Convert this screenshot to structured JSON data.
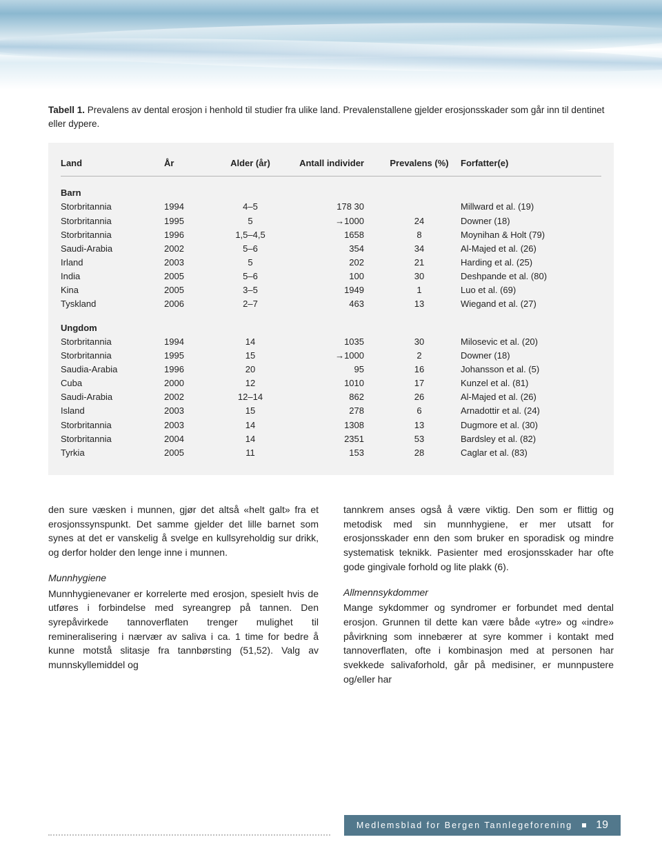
{
  "caption": {
    "label": "Tabell 1.",
    "text": "Prevalens av dental erosjon i henhold til studier fra ulike land. Prevalenstallene gjelder erosjonsskader som går inn til dentinet eller dypere."
  },
  "table": {
    "headers": {
      "land": "Land",
      "year": "År",
      "age": "Alder (år)",
      "n": "Antall individer",
      "prev": "Prevalens (%)",
      "auth": "Forfatter(e)"
    },
    "section1": "Barn",
    "barn": [
      {
        "land": "Storbritannia",
        "year": "1994",
        "age": "4–5",
        "n": "178 30",
        "prev": "",
        "auth": "Millward et al. (19)"
      },
      {
        "land": "Storbritannia",
        "year": "1995",
        "age": "5",
        "n": "→1000",
        "prev": "24",
        "auth": "Downer (18)"
      },
      {
        "land": "Storbritannia",
        "year": "1996",
        "age": "1,5–4,5",
        "n": "1658",
        "prev": "8",
        "auth": "Moynihan & Holt (79)"
      },
      {
        "land": "Saudi-Arabia",
        "year": "2002",
        "age": "5–6",
        "n": "354",
        "prev": "34",
        "auth": "Al-Majed et al. (26)"
      },
      {
        "land": "Irland",
        "year": "2003",
        "age": "5",
        "n": "202",
        "prev": "21",
        "auth": "Harding et al. (25)"
      },
      {
        "land": "India",
        "year": "2005",
        "age": "5–6",
        "n": "100",
        "prev": "30",
        "auth": "Deshpande et al. (80)"
      },
      {
        "land": "Kina",
        "year": "2005",
        "age": "3–5",
        "n": "1949",
        "prev": "1",
        "auth": "Luo et al. (69)"
      },
      {
        "land": "Tyskland",
        "year": "2006",
        "age": "2–7",
        "n": "463",
        "prev": "13",
        "auth": "Wiegand et al. (27)"
      }
    ],
    "section2": "Ungdom",
    "ungdom": [
      {
        "land": "Storbritannia",
        "year": "1994",
        "age": "14",
        "n": "1035",
        "prev": "30",
        "auth": "Milosevic et al. (20)"
      },
      {
        "land": "Storbritannia",
        "year": "1995",
        "age": "15",
        "n": "→1000",
        "prev": "2",
        "auth": "Downer (18)"
      },
      {
        "land": "Saudia-Arabia",
        "year": "1996",
        "age": "20",
        "n": "95",
        "prev": "16",
        "auth": "Johansson et al. (5)"
      },
      {
        "land": "Cuba",
        "year": "2000",
        "age": "12",
        "n": "1010",
        "prev": "17",
        "auth": "Kunzel et al. (81)"
      },
      {
        "land": "Saudi-Arabia",
        "year": "2002",
        "age": "12–14",
        "n": "862",
        "prev": "26",
        "auth": "Al-Majed et al. (26)"
      },
      {
        "land": "Island",
        "year": "2003",
        "age": "15",
        "n": "278",
        "prev": "6",
        "auth": "Arnadottir et al. (24)"
      },
      {
        "land": "Storbritannia",
        "year": "2003",
        "age": "14",
        "n": "1308",
        "prev": "13",
        "auth": "Dugmore et al. (30)"
      },
      {
        "land": "Storbritannia",
        "year": "2004",
        "age": "14",
        "n": "2351",
        "prev": "53",
        "auth": "Bardsley et al. (82)"
      },
      {
        "land": "Tyrkia",
        "year": "2005",
        "age": "11",
        "n": "153",
        "prev": "28",
        "auth": "Caglar et al. (83)"
      }
    ]
  },
  "body": {
    "left": {
      "p1": "den sure væsken i munnen, gjør det altså «helt galt» fra et erosjonssynspunkt. Det samme gjelder det lille barnet som synes at det er vanskelig å svelge en kullsyreholdig sur drikk, og derfor holder den lenge inne i munnen.",
      "h1": "Munnhygiene",
      "p2": "Munnhygienevaner er korrelerte med erosjon, spesielt hvis de utføres i forbindelse med syreangrep på tannen. Den syrepåvirkede tannoverflaten trenger mulighet til remineralisering i nærvær av saliva i ca. 1 time for bedre å kunne motstå slitasje fra tannbørsting (51,52). Valg av munnskyllemiddel og"
    },
    "right": {
      "p1": "tannkrem anses også å være viktig. Den som er flittig og metodisk med sin munnhygiene, er mer utsatt for erosjonsskader enn den som bruker en sporadisk og mindre systematisk teknikk. Pasienter med erosjonsskader har ofte gode gingivale forhold og lite plakk (6).",
      "h1": "Allmennsykdommer",
      "p2": "Mange sykdommer og syndromer er forbundet med dental erosjon. Grunnen til dette kan være både «ytre» og «indre» påvirkning som innebærer at syre kommer i kontakt med tannoverflaten, ofte i kombinasjon med at personen har svekkede salivaforhold, går på medisiner, er munnpustere og/eller har"
    }
  },
  "footer": {
    "text": "Medlemsblad for Bergen Tannlegeforening",
    "page": "19"
  }
}
